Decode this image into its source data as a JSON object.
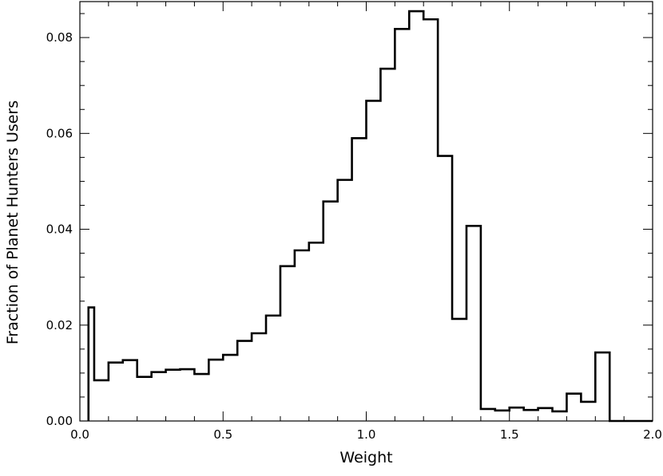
{
  "chart_data": {
    "type": "histogram",
    "xlabel": "Weight",
    "ylabel": "Fraction of Planet Hunters Users",
    "xlim": [
      0.0,
      2.0
    ],
    "ylim": [
      0.0,
      0.0875
    ],
    "grid": false,
    "legend": "none",
    "line_color": "#000000",
    "x_ticks": [
      {
        "value": 0.0,
        "label": "0.0"
      },
      {
        "value": 0.5,
        "label": "0.5"
      },
      {
        "value": 1.0,
        "label": "1.0"
      },
      {
        "value": 1.5,
        "label": "1.5"
      },
      {
        "value": 2.0,
        "label": "2.0"
      }
    ],
    "y_ticks": [
      {
        "value": 0.0,
        "label": "0.00"
      },
      {
        "value": 0.02,
        "label": "0.02"
      },
      {
        "value": 0.04,
        "label": "0.04"
      },
      {
        "value": 0.06,
        "label": "0.06"
      },
      {
        "value": 0.08,
        "label": "0.08"
      }
    ],
    "x_minor_step": 0.1,
    "y_minor_step": 0.005,
    "bin_edges": [
      0.03,
      0.05,
      0.1,
      0.15,
      0.2,
      0.25,
      0.3,
      0.35,
      0.4,
      0.45,
      0.5,
      0.55,
      0.6,
      0.65,
      0.7,
      0.75,
      0.8,
      0.85,
      0.9,
      0.95,
      1.0,
      1.05,
      1.1,
      1.15,
      1.2,
      1.25,
      1.3,
      1.35,
      1.4,
      1.45,
      1.5,
      1.55,
      1.6,
      1.65,
      1.7,
      1.75,
      1.8,
      1.85,
      2.0
    ],
    "values": [
      0.0237,
      0.0085,
      0.0122,
      0.0127,
      0.0092,
      0.0102,
      0.0107,
      0.0108,
      0.0098,
      0.0128,
      0.0138,
      0.0167,
      0.0183,
      0.022,
      0.0323,
      0.0356,
      0.0372,
      0.0458,
      0.0503,
      0.059,
      0.0668,
      0.0735,
      0.0818,
      0.0855,
      0.0838,
      0.0553,
      0.0213,
      0.0407,
      0.0025,
      0.0022,
      0.0028,
      0.0023,
      0.0027,
      0.002,
      0.0057,
      0.004,
      0.0143,
      0.0
    ]
  }
}
